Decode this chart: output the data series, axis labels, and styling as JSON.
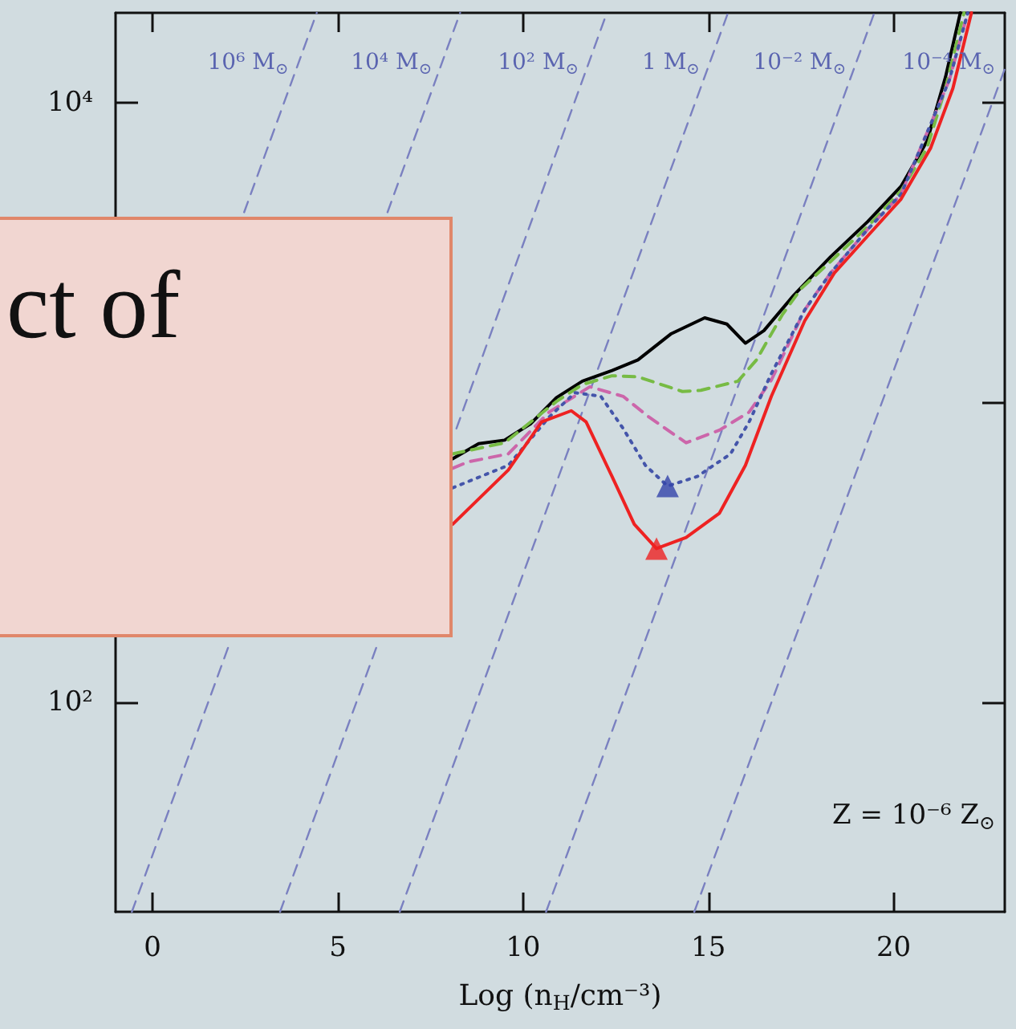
{
  "chart_data": {
    "type": "line",
    "xlabel": "Log (n$_{H}$/cm⁻³)",
    "xlim": [
      -1,
      23
    ],
    "xticks": [
      0,
      5,
      10,
      15,
      20
    ],
    "ylim": [
      20,
      20000
    ],
    "yticks": [
      {
        "value": 100,
        "label": "10²"
      },
      {
        "value": 1000,
        "label": null
      },
      {
        "value": 10000,
        "label": "10⁴"
      }
    ],
    "log": "y",
    "grid": false,
    "legend": false,
    "marker": "none",
    "annotations": [
      "Z = 10⁻⁶ Z$_{⊙}$",
      "ct of"
    ],
    "series": [
      {
        "color": "#000000",
        "line_style": "solid",
        "x": [
          8.1,
          8.8,
          9.5,
          10.2,
          10.9,
          11.6,
          12.4,
          13.1,
          14.0,
          14.9,
          15.5,
          16.0,
          16.5,
          17.3,
          18.3,
          19.3,
          20.2,
          20.9,
          21.4,
          21.8
        ],
        "values": [
          650,
          730,
          750,
          850,
          1040,
          1180,
          1280,
          1390,
          1700,
          1920,
          1830,
          1580,
          1740,
          2280,
          3070,
          4020,
          5270,
          7450,
          12200,
          20000
        ]
      },
      {
        "color": "#77bb44",
        "line_style": "dashed",
        "x": [
          8.1,
          9.5,
          10.9,
          11.6,
          12.4,
          13.1,
          14.3,
          14.8,
          15.8,
          16.3,
          17.0,
          17.5,
          18.3,
          19.3,
          20.2,
          20.9,
          21.4,
          21.9
        ],
        "values": [
          675,
          735,
          1010,
          1150,
          1230,
          1220,
          1090,
          1100,
          1180,
          1390,
          1970,
          2400,
          2960,
          3870,
          5090,
          7080,
          11200,
          20000
        ]
      },
      {
        "color": "#cc66aa",
        "line_style": "dashed",
        "x": [
          8.1,
          8.5,
          9.6,
          10.7,
          11.8,
          12.7,
          13.4,
          14.4,
          15.3,
          16.1,
          16.7,
          17.6,
          18.3,
          19.3,
          20.2,
          21.5,
          22.0
        ],
        "values": [
          604,
          634,
          675,
          930,
          1130,
          1050,
          895,
          735,
          810,
          930,
          1190,
          2040,
          2710,
          3790,
          4960,
          11900,
          20000
        ]
      },
      {
        "color": "#4455aa",
        "line_style": "dotted",
        "x": [
          8.1,
          9.6,
          10.7,
          11.4,
          12.1,
          12.7,
          13.3,
          13.9,
          14.7,
          15.6,
          16.1,
          16.7,
          17.6,
          18.3,
          19.3,
          20.2,
          21.5,
          22.0
        ],
        "values": [
          520,
          618,
          895,
          1080,
          1050,
          820,
          618,
          527,
          567,
          675,
          863,
          1250,
          2040,
          2710,
          3790,
          4960,
          11900,
          20000
        ]
      },
      {
        "color": "#ee2222",
        "line_style": "solid",
        "x": [
          8.1,
          9.6,
          10.5,
          11.3,
          11.7,
          12.4,
          13.0,
          13.6,
          14.4,
          15.3,
          16.0,
          16.7,
          17.6,
          18.4,
          19.3,
          20.2,
          21.0,
          21.6,
          22.1
        ],
        "values": [
          393,
          596,
          863,
          940,
          863,
          567,
          393,
          326,
          355,
          428,
          618,
          1050,
          1875,
          2710,
          3600,
          4780,
          7080,
          11200,
          20000
        ]
      },
      {
        "type": "scatter",
        "color": "#3344aa",
        "marker": "triangle",
        "x": [
          13.9
        ],
        "values": [
          527
        ]
      },
      {
        "type": "scatter",
        "color": "#ee2222",
        "marker": "triangle",
        "x": [
          13.6
        ],
        "values": [
          326
        ]
      },
      {
        "name": "10⁶ M$_{⊙}$",
        "color": "#7a80c0",
        "line_style": "dashed",
        "x": [
          2.47,
          4.43
        ],
        "values": [
          4320,
          20000
        ]
      },
      {
        "name": "10⁴ M$_{⊙}$",
        "color": "#7a80c0",
        "line_style": "dashed",
        "x": [
          -0.56,
          2.1,
          4.2,
          6.34,
          8.3
        ],
        "values": [
          20,
          160,
          null,
          4320,
          20000
        ]
      },
      {
        "name": "10² M$_{⊙}$",
        "color": "#7a80c0",
        "line_style": "dashed",
        "x": [
          3.44,
          6.1,
          7.1,
          8.2,
          12.26
        ],
        "values": [
          20,
          160,
          null,
          820,
          20000
        ]
      },
      {
        "name": "1 M$_{⊙}$",
        "color": "#7a80c0",
        "line_style": "dashed",
        "x": [
          6.67,
          15.53
        ],
        "values": [
          20,
          20000
        ]
      },
      {
        "name": "10⁻² M$_{⊙}$",
        "color": "#7a80c0",
        "line_style": "dashed",
        "x": [
          10.62,
          19.48
        ],
        "values": [
          20,
          20000
        ]
      },
      {
        "name": "10⁻⁴ M$_{⊙}$",
        "color": "#7a80c0",
        "line_style": "dashed",
        "x": [
          14.62,
          23
        ],
        "values": [
          20,
          13000
        ]
      }
    ]
  }
}
